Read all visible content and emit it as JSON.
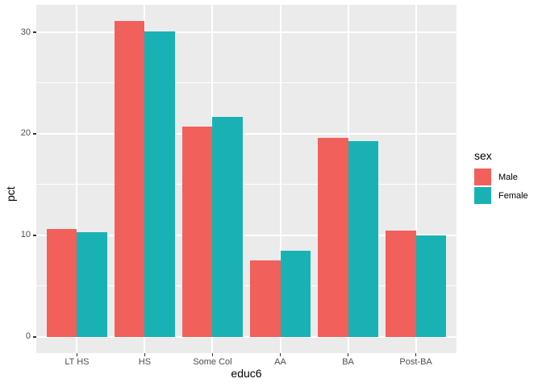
{
  "figure": {
    "background": "#FFFFFF",
    "panel_background": "#EBEBEB",
    "grid_color": "#FFFFFF",
    "axis_text_color": "#4D4D4D",
    "title_text_color": "#000000",
    "tick_mark_color": "#333333"
  },
  "chart_data": {
    "type": "bar",
    "title": "",
    "xlabel": "educ6",
    "ylabel": "pct",
    "categories": [
      "LT HS",
      "HS",
      "Some Col",
      "AA",
      "BA",
      "Post-BA"
    ],
    "series": [
      {
        "name": "Male",
        "color": "#F2605B",
        "values": [
          10.6,
          31.1,
          20.7,
          7.5,
          19.6,
          10.5
        ]
      },
      {
        "name": "Female",
        "color": "#18B2B5",
        "values": [
          10.3,
          30.1,
          21.7,
          8.5,
          19.3,
          10.0
        ]
      }
    ],
    "y_ticks": [
      0,
      10,
      20,
      30
    ],
    "y_minor_ticks": [
      5,
      15,
      25
    ],
    "ylim": [
      -1.6,
      32.7
    ],
    "grid": true,
    "legend_title": "sex",
    "legend_position": "right"
  }
}
